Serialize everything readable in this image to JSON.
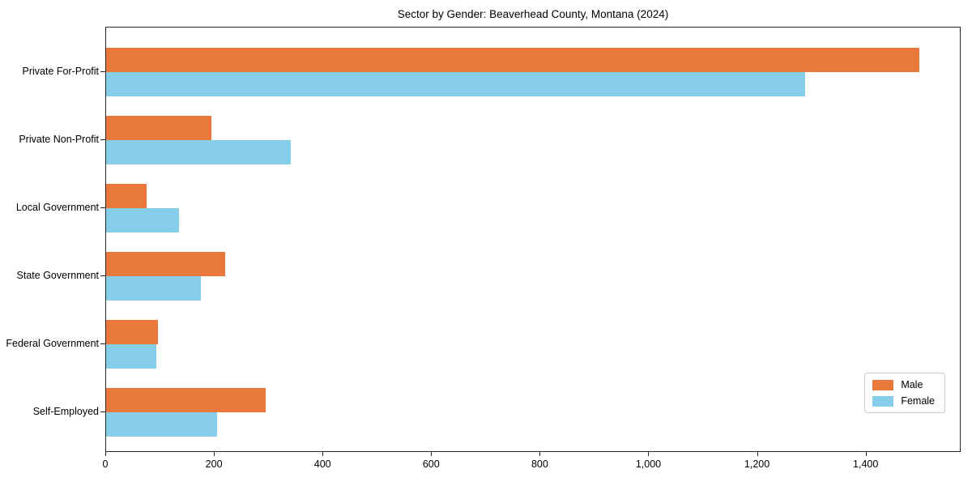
{
  "chart_data": {
    "type": "bar",
    "orientation": "horizontal",
    "title": "Sector by Gender: Beaverhead County, Montana (2024)",
    "categories": [
      "Private For-Profit",
      "Private Non-Profit",
      "Local Government",
      "State Government",
      "Federal Government",
      "Self-Employed"
    ],
    "series": [
      {
        "name": "Male",
        "color": "#e8793b",
        "values": [
          1500,
          195,
          75,
          220,
          95,
          295
        ]
      },
      {
        "name": "Female",
        "color": "#87ceeb",
        "values": [
          1290,
          340,
          135,
          175,
          93,
          205
        ]
      }
    ],
    "xlabel": "",
    "ylabel": "",
    "xlim": [
      0,
      1575
    ],
    "xticks": [
      0,
      200,
      400,
      600,
      800,
      1000,
      1200,
      1400
    ],
    "xtick_labels": [
      "0",
      "200",
      "400",
      "600",
      "800",
      "1,000",
      "1,200",
      "1,400"
    ],
    "grid": false,
    "legend": {
      "position": "lower right",
      "entries": [
        "Male",
        "Female"
      ]
    },
    "colors": {
      "background": "#ffffff",
      "spine": "#262626",
      "male": "#e8793b",
      "female": "#87ceeb"
    }
  }
}
